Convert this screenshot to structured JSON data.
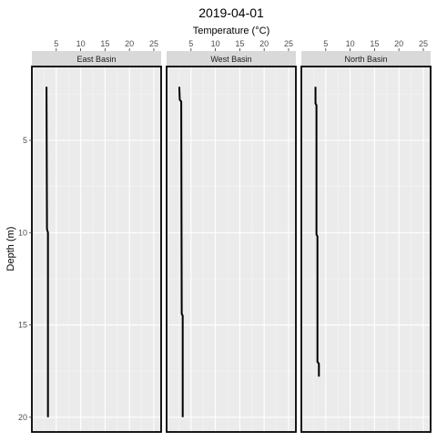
{
  "chart_data": {
    "type": "line",
    "title": "2019-04-01",
    "xlabel": "Temperature (°C)",
    "ylabel": "Depth (m)",
    "x_axis_position": "top",
    "y_reversed": true,
    "xlim": [
      0,
      26.5
    ],
    "ylim": [
      1,
      20.8
    ],
    "x_ticks": [
      5,
      10,
      15,
      20,
      25
    ],
    "y_ticks": [
      5,
      10,
      15,
      20
    ],
    "grid": true,
    "panels": [
      {
        "name": "East Basin",
        "points": [
          [
            3.0,
            2.1
          ],
          [
            3.1,
            9.8
          ],
          [
            3.3,
            10.0
          ],
          [
            3.3,
            20.0
          ]
        ]
      },
      {
        "name": "West Basin",
        "points": [
          [
            2.6,
            2.1
          ],
          [
            2.7,
            2.8
          ],
          [
            3.0,
            2.9
          ],
          [
            3.1,
            14.4
          ],
          [
            3.3,
            14.5
          ],
          [
            3.3,
            20.0
          ]
        ]
      },
      {
        "name": "North Basin",
        "points": [
          [
            2.9,
            2.1
          ],
          [
            2.9,
            3.0
          ],
          [
            3.1,
            3.1
          ],
          [
            3.1,
            10.1
          ],
          [
            3.3,
            10.2
          ],
          [
            3.3,
            17.0
          ],
          [
            3.6,
            17.1
          ],
          [
            3.6,
            17.8
          ]
        ]
      }
    ]
  }
}
